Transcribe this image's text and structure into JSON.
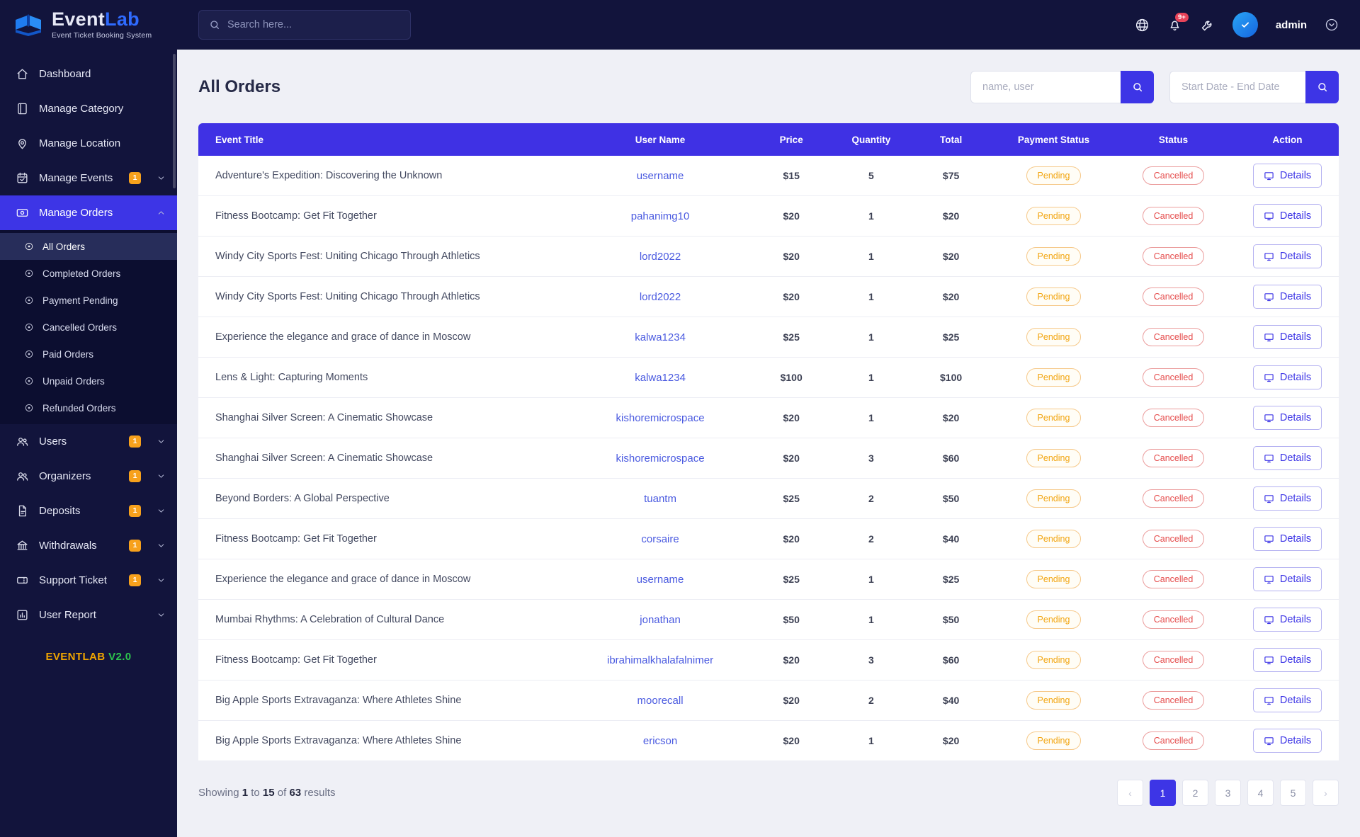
{
  "brand": {
    "name_primary": "Event",
    "name_accent": "Lab",
    "subtitle": "Event Ticket Booking System",
    "version_label": "EVENTLAB",
    "version": "V2.0"
  },
  "topbar": {
    "search_placeholder": "Search here...",
    "notification_count": "9+",
    "username": "admin"
  },
  "sidebar": {
    "items": [
      {
        "label": "Dashboard",
        "icon": "home"
      },
      {
        "label": "Manage Category",
        "icon": "category"
      },
      {
        "label": "Manage Location",
        "icon": "location"
      },
      {
        "label": "Manage Events",
        "icon": "calendar",
        "badge": "1",
        "chevron": "down"
      },
      {
        "label": "Manage Orders",
        "icon": "orders",
        "chevron": "up",
        "active": true,
        "children": [
          "All Orders",
          "Completed Orders",
          "Payment Pending",
          "Cancelled Orders",
          "Paid Orders",
          "Unpaid Orders",
          "Refunded Orders"
        ],
        "active_child": "All Orders"
      },
      {
        "label": "Users",
        "icon": "users",
        "badge": "1",
        "chevron": "down"
      },
      {
        "label": "Organizers",
        "icon": "organizers",
        "badge": "1",
        "chevron": "down"
      },
      {
        "label": "Deposits",
        "icon": "deposits",
        "badge": "1",
        "chevron": "down"
      },
      {
        "label": "Withdrawals",
        "icon": "withdrawals",
        "badge": "1",
        "chevron": "down"
      },
      {
        "label": "Support Ticket",
        "icon": "ticket",
        "badge": "1",
        "chevron": "down"
      },
      {
        "label": "User Report",
        "icon": "report",
        "chevron": "down"
      }
    ]
  },
  "page": {
    "title": "All Orders",
    "filter_user_placeholder": "name, user",
    "filter_date_placeholder": "Start Date - End Date"
  },
  "table": {
    "headers": [
      "Event Title",
      "User Name",
      "Price",
      "Quantity",
      "Total",
      "Payment Status",
      "Status",
      "Action"
    ],
    "action_label": "Details",
    "rows": [
      {
        "title": "Adventure's Expedition: Discovering the Unknown",
        "user": "username",
        "price": "$15",
        "qty": "5",
        "total": "$75",
        "payment": "Pending",
        "status": "Cancelled"
      },
      {
        "title": "Fitness Bootcamp: Get Fit Together",
        "user": "pahanimg10",
        "price": "$20",
        "qty": "1",
        "total": "$20",
        "payment": "Pending",
        "status": "Cancelled"
      },
      {
        "title": "Windy City Sports Fest: Uniting Chicago Through Athletics",
        "user": "lord2022",
        "price": "$20",
        "qty": "1",
        "total": "$20",
        "payment": "Pending",
        "status": "Cancelled"
      },
      {
        "title": "Windy City Sports Fest: Uniting Chicago Through Athletics",
        "user": "lord2022",
        "price": "$20",
        "qty": "1",
        "total": "$20",
        "payment": "Pending",
        "status": "Cancelled"
      },
      {
        "title": "Experience the elegance and grace of dance in Moscow",
        "user": "kalwa1234",
        "price": "$25",
        "qty": "1",
        "total": "$25",
        "payment": "Pending",
        "status": "Cancelled"
      },
      {
        "title": "Lens & Light: Capturing Moments",
        "user": "kalwa1234",
        "price": "$100",
        "qty": "1",
        "total": "$100",
        "payment": "Pending",
        "status": "Cancelled"
      },
      {
        "title": "Shanghai Silver Screen: A Cinematic Showcase",
        "user": "kishoremicrospace",
        "price": "$20",
        "qty": "1",
        "total": "$20",
        "payment": "Pending",
        "status": "Cancelled"
      },
      {
        "title": "Shanghai Silver Screen: A Cinematic Showcase",
        "user": "kishoremicrospace",
        "price": "$20",
        "qty": "3",
        "total": "$60",
        "payment": "Pending",
        "status": "Cancelled"
      },
      {
        "title": "Beyond Borders: A Global Perspective",
        "user": "tuantm",
        "price": "$25",
        "qty": "2",
        "total": "$50",
        "payment": "Pending",
        "status": "Cancelled"
      },
      {
        "title": "Fitness Bootcamp: Get Fit Together",
        "user": "corsaire",
        "price": "$20",
        "qty": "2",
        "total": "$40",
        "payment": "Pending",
        "status": "Cancelled"
      },
      {
        "title": "Experience the elegance and grace of dance in Moscow",
        "user": "username",
        "price": "$25",
        "qty": "1",
        "total": "$25",
        "payment": "Pending",
        "status": "Cancelled"
      },
      {
        "title": "Mumbai Rhythms: A Celebration of Cultural Dance",
        "user": "jonathan",
        "price": "$50",
        "qty": "1",
        "total": "$50",
        "payment": "Pending",
        "status": "Cancelled"
      },
      {
        "title": "Fitness Bootcamp: Get Fit Together",
        "user": "ibrahimalkhalafalnimer",
        "price": "$20",
        "qty": "3",
        "total": "$60",
        "payment": "Pending",
        "status": "Cancelled"
      },
      {
        "title": "Big Apple Sports Extravaganza: Where Athletes Shine",
        "user": "moorecall",
        "price": "$20",
        "qty": "2",
        "total": "$40",
        "payment": "Pending",
        "status": "Cancelled"
      },
      {
        "title": "Big Apple Sports Extravaganza: Where Athletes Shine",
        "user": "ericson",
        "price": "$20",
        "qty": "1",
        "total": "$20",
        "payment": "Pending",
        "status": "Cancelled"
      }
    ]
  },
  "footer": {
    "prefix": "Showing",
    "from": "1",
    "to_word": "to",
    "to": "15",
    "of_word": "of",
    "total": "63",
    "suffix": "results"
  },
  "pagination": {
    "prev": "‹",
    "pages": [
      "1",
      "2",
      "3",
      "4",
      "5"
    ],
    "active_page": "1",
    "next": "›"
  },
  "colors": {
    "primary": "#3d35e6",
    "sidebar_bg": "#12143c",
    "badge_orange": "#f7a11c",
    "pending": "#f2a50f",
    "cancelled": "#e54b4b",
    "link": "#4a5ae0",
    "version_orange": "#f0a500",
    "version_green": "#2dc44d"
  }
}
